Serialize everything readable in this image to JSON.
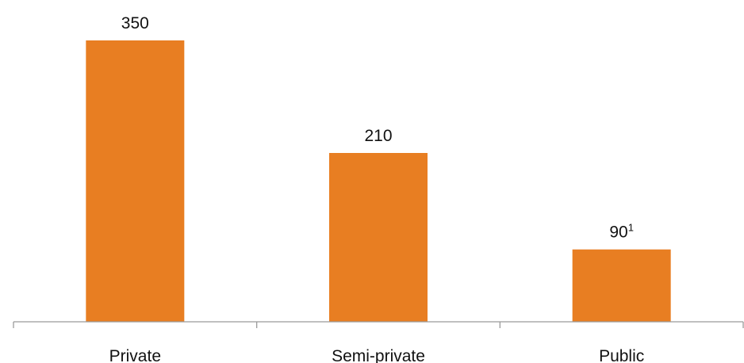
{
  "chart_data": {
    "type": "bar",
    "categories": [
      "Private",
      "Semi-private",
      "Public"
    ],
    "values": [
      350,
      210,
      90
    ],
    "data_labels": [
      "350",
      "210",
      "90"
    ],
    "data_label_footnotes": [
      "",
      "",
      "1"
    ],
    "title": "",
    "xlabel": "",
    "ylabel": "",
    "ylim": [
      0,
      350
    ],
    "grid": false,
    "legend": "none",
    "colors": {
      "bar": "#E87E22",
      "axis": "#9A9A9A",
      "text": "#111111"
    }
  }
}
